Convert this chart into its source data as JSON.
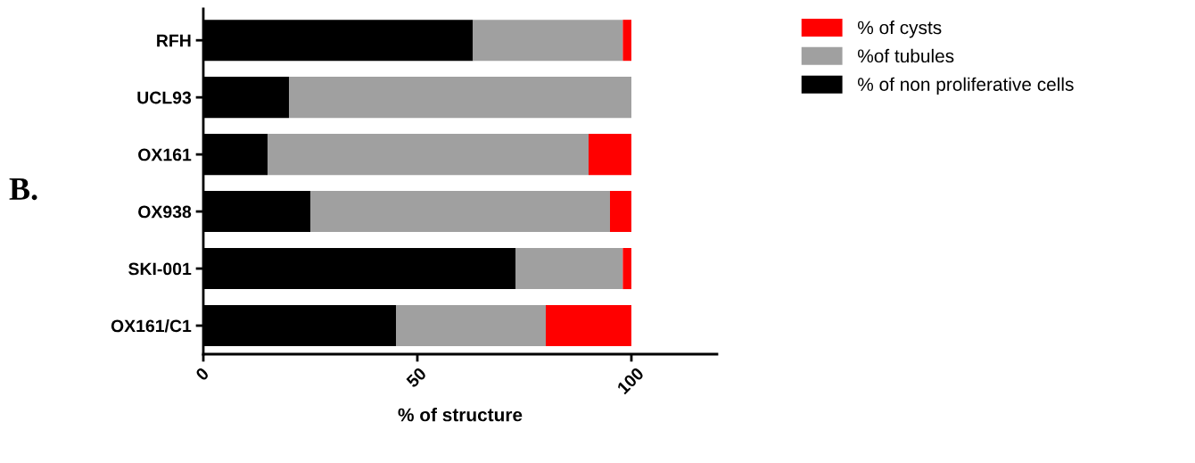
{
  "chart_data": {
    "type": "bar",
    "orientation": "horizontal",
    "stacked": true,
    "categories": [
      "RFH",
      "UCL93",
      "OX161",
      "OX938",
      "SKI-001",
      "OX161/C1"
    ],
    "series": [
      {
        "name": "% of non proliferative cells",
        "color": "#000000",
        "values": [
          63,
          20,
          15,
          25,
          73,
          45
        ]
      },
      {
        "name": "%of tubules",
        "color": "#a0a0a0",
        "values": [
          35,
          80,
          75,
          70,
          25,
          35
        ]
      },
      {
        "name": "% of cysts",
        "color": "#ff0000",
        "values": [
          2,
          0,
          10,
          5,
          2,
          20
        ]
      }
    ],
    "xlim": [
      0,
      120
    ],
    "xticks": [
      0,
      50,
      100
    ],
    "xlabel": "% of structure",
    "annotations": [
      "B."
    ],
    "legend": "top right",
    "grid": false
  }
}
